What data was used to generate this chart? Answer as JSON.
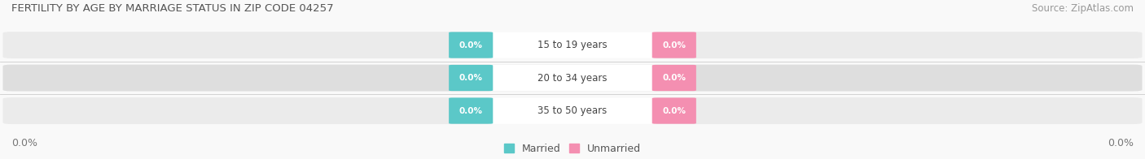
{
  "title": "FERTILITY BY AGE BY MARRIAGE STATUS IN ZIP CODE 04257",
  "source": "Source: ZipAtlas.com",
  "categories": [
    "15 to 19 years",
    "20 to 34 years",
    "35 to 50 years"
  ],
  "married_values": [
    0.0,
    0.0,
    0.0
  ],
  "unmarried_values": [
    0.0,
    0.0,
    0.0
  ],
  "married_color": "#5bc8c8",
  "unmarried_color": "#f48fb1",
  "pill_bg_light": "#ebebeb",
  "pill_bg_dark": "#dedede",
  "fig_bg_color": "#f9f9f9",
  "title_color": "#555555",
  "source_color": "#999999",
  "label_color": "#555555",
  "center_label_color": "#444444",
  "axis_tick_color": "#777777",
  "xlim": [
    -1.0,
    1.0
  ],
  "axis_label_left": "0.0%",
  "axis_label_right": "0.0%",
  "figsize": [
    14.06,
    1.96
  ],
  "dpi": 100,
  "title_fontsize": 9.5,
  "source_fontsize": 8.5,
  "cat_fontsize": 8.5,
  "badge_fontsize": 7.5,
  "tick_fontsize": 9,
  "legend_fontsize": 9
}
